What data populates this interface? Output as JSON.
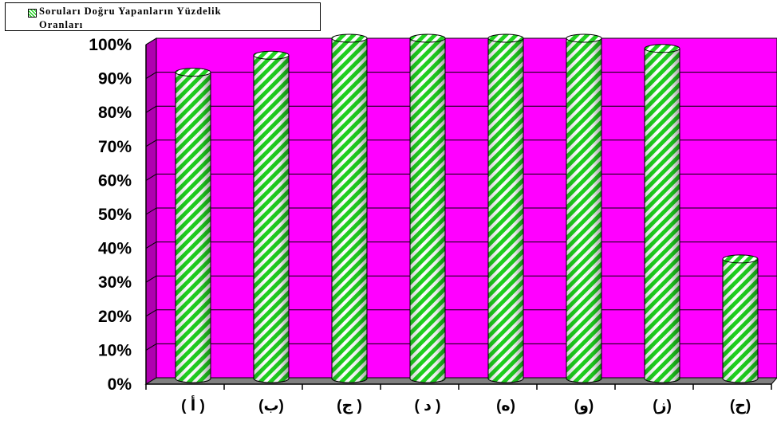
{
  "chart_data": {
    "type": "bar",
    "categories": [
      "( أ )",
      "(ب)",
      "(ج )",
      "( د )",
      "(ه)",
      "(و)",
      "(ز)",
      "(ح)"
    ],
    "series": [
      {
        "name": "Soruları Doğru Yapanların Yüzdelik Oranları",
        "values": [
          90,
          95,
          100,
          100,
          100,
          100,
          97,
          35
        ]
      }
    ],
    "ylim": [
      0,
      100
    ],
    "yticks": [
      "0%",
      "10%",
      "20%",
      "30%",
      "40%",
      "50%",
      "60%",
      "70%",
      "80%",
      "90%",
      "100%"
    ],
    "grid": true,
    "legend": "top-left",
    "bar_shape": "cylinder",
    "colors": {
      "plot_background": "#ff00ff",
      "bar_stripe": "#1fd11f",
      "bar_stripe_alt": "#ffffff",
      "floor": "#808080",
      "wall": "#b000b0"
    }
  },
  "legend": {
    "line1": "Soruları Doğru Yapanların Yüzdelik",
    "line2": "Oranları"
  }
}
